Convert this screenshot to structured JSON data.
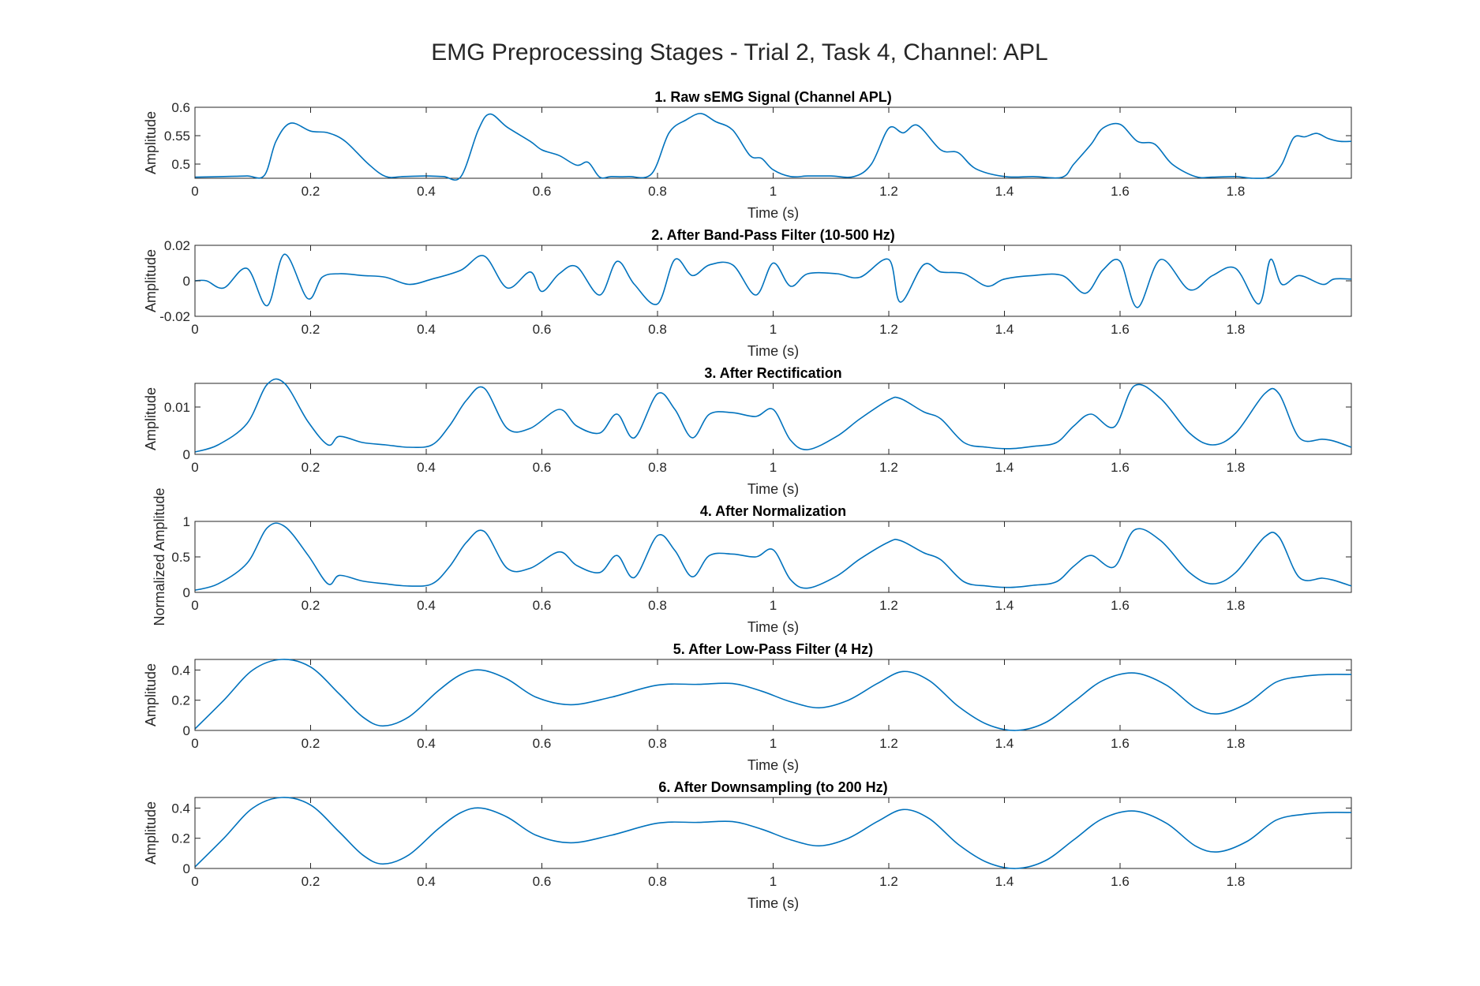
{
  "figure_title": "EMG Preprocessing Stages - Trial 2, Task 4, Channel: APL",
  "line_color": "#0072BD",
  "chart_data": [
    {
      "type": "line",
      "title": "1. Raw sEMG Signal (Channel APL)",
      "xlabel": "Time (s)",
      "ylabel": "Amplitude",
      "xlim": [
        0,
        2
      ],
      "ylim": [
        0.475,
        0.6
      ],
      "xticks": [
        "0",
        "0.2",
        "0.4",
        "0.6",
        "0.8",
        "1",
        "1.2",
        "1.4",
        "1.6",
        "1.8"
      ],
      "yticks": [
        {
          "v": 0.5,
          "label": "0.5"
        },
        {
          "v": 0.55,
          "label": "0.55"
        },
        {
          "v": 0.6,
          "label": "0.6"
        }
      ],
      "x": [
        0,
        0.05,
        0.09,
        0.12,
        0.14,
        0.165,
        0.2,
        0.23,
        0.26,
        0.3,
        0.33,
        0.36,
        0.4,
        0.43,
        0.46,
        0.49,
        0.51,
        0.54,
        0.58,
        0.6,
        0.63,
        0.66,
        0.68,
        0.7,
        0.72,
        0.75,
        0.79,
        0.82,
        0.85,
        0.875,
        0.9,
        0.93,
        0.96,
        0.98,
        1.0,
        1.03,
        1.06,
        1.1,
        1.14,
        1.17,
        1.2,
        1.225,
        1.25,
        1.29,
        1.32,
        1.35,
        1.4,
        1.45,
        1.5,
        1.52,
        1.55,
        1.57,
        1.6,
        1.63,
        1.66,
        1.69,
        1.73,
        1.76,
        1.8,
        1.83,
        1.86,
        1.88,
        1.9,
        1.92,
        1.94,
        1.96,
        1.98,
        2.0
      ],
      "y": [
        0.477,
        0.478,
        0.479,
        0.48,
        0.54,
        0.572,
        0.558,
        0.555,
        0.54,
        0.5,
        0.478,
        0.478,
        0.479,
        0.478,
        0.478,
        0.56,
        0.588,
        0.565,
        0.54,
        0.525,
        0.515,
        0.498,
        0.503,
        0.477,
        0.478,
        0.478,
        0.483,
        0.555,
        0.578,
        0.589,
        0.575,
        0.56,
        0.515,
        0.51,
        0.49,
        0.478,
        0.479,
        0.479,
        0.478,
        0.5,
        0.563,
        0.555,
        0.568,
        0.525,
        0.52,
        0.492,
        0.478,
        0.478,
        0.477,
        0.5,
        0.535,
        0.563,
        0.57,
        0.54,
        0.535,
        0.5,
        0.478,
        0.477,
        0.478,
        0.475,
        0.478,
        0.5,
        0.546,
        0.548,
        0.554,
        0.545,
        0.54,
        0.54
      ]
    },
    {
      "type": "line",
      "title": "2. After Band-Pass Filter (10-500 Hz)",
      "xlabel": "Time (s)",
      "ylabel": "Amplitude",
      "xlim": [
        0,
        2
      ],
      "ylim": [
        -0.02,
        0.02
      ],
      "xticks": [
        "0",
        "0.2",
        "0.4",
        "0.6",
        "0.8",
        "1",
        "1.2",
        "1.4",
        "1.6",
        "1.8"
      ],
      "yticks": [
        {
          "v": -0.02,
          "label": "-0.02"
        },
        {
          "v": 0,
          "label": "0"
        },
        {
          "v": 0.02,
          "label": "0.02"
        }
      ],
      "x": [
        0,
        0.02,
        0.05,
        0.09,
        0.125,
        0.155,
        0.195,
        0.22,
        0.25,
        0.29,
        0.33,
        0.37,
        0.41,
        0.46,
        0.5,
        0.54,
        0.58,
        0.6,
        0.63,
        0.66,
        0.7,
        0.73,
        0.76,
        0.8,
        0.83,
        0.86,
        0.89,
        0.93,
        0.97,
        1.0,
        1.03,
        1.06,
        1.11,
        1.15,
        1.2,
        1.22,
        1.26,
        1.29,
        1.33,
        1.37,
        1.4,
        1.45,
        1.5,
        1.54,
        1.57,
        1.6,
        1.63,
        1.67,
        1.72,
        1.76,
        1.8,
        1.84,
        1.86,
        1.88,
        1.91,
        1.95,
        1.97,
        2.0
      ],
      "y": [
        0,
        0,
        -0.004,
        0.007,
        -0.014,
        0.015,
        -0.01,
        0.002,
        0.004,
        0.003,
        0.002,
        -0.002,
        0.001,
        0.006,
        0.014,
        -0.004,
        0.005,
        -0.006,
        0.004,
        0.008,
        -0.008,
        0.011,
        -0.002,
        -0.013,
        0.012,
        0.003,
        0.009,
        0.009,
        -0.008,
        0.01,
        -0.003,
        0.004,
        0.004,
        0.002,
        0.012,
        -0.012,
        0.009,
        0.005,
        0.004,
        -0.003,
        0.001,
        0.003,
        0.003,
        -0.007,
        0.006,
        0.011,
        -0.015,
        0.012,
        -0.005,
        0.003,
        0.007,
        -0.013,
        0.012,
        -0.002,
        0.003,
        -0.002,
        0.001,
        0.001
      ]
    },
    {
      "type": "line",
      "title": "3. After Rectification",
      "xlabel": "Time (s)",
      "ylabel": "Amplitude",
      "xlim": [
        0,
        2
      ],
      "ylim": [
        0,
        0.015
      ],
      "xticks": [
        "0",
        "0.2",
        "0.4",
        "0.6",
        "0.8",
        "1",
        "1.2",
        "1.4",
        "1.6",
        "1.8"
      ],
      "yticks": [
        {
          "v": 0,
          "label": "0"
        },
        {
          "v": 0.01,
          "label": "0.01"
        }
      ],
      "x": [
        0,
        0.04,
        0.09,
        0.125,
        0.155,
        0.195,
        0.23,
        0.25,
        0.29,
        0.33,
        0.37,
        0.41,
        0.44,
        0.47,
        0.5,
        0.54,
        0.58,
        0.63,
        0.66,
        0.7,
        0.73,
        0.76,
        0.8,
        0.83,
        0.86,
        0.89,
        0.93,
        0.97,
        1.0,
        1.03,
        1.06,
        1.11,
        1.15,
        1.2,
        1.22,
        1.26,
        1.29,
        1.33,
        1.37,
        1.41,
        1.45,
        1.49,
        1.52,
        1.55,
        1.59,
        1.625,
        1.67,
        1.72,
        1.76,
        1.8,
        1.85,
        1.875,
        1.91,
        1.95,
        1.97,
        2.0
      ],
      "y": [
        0.0005,
        0.002,
        0.0065,
        0.0148,
        0.015,
        0.007,
        0.002,
        0.0038,
        0.0025,
        0.002,
        0.0015,
        0.002,
        0.006,
        0.0115,
        0.014,
        0.0055,
        0.0055,
        0.0095,
        0.006,
        0.0045,
        0.0085,
        0.0035,
        0.0128,
        0.0095,
        0.0035,
        0.0085,
        0.0088,
        0.008,
        0.0095,
        0.003,
        0.001,
        0.0038,
        0.0075,
        0.0115,
        0.0118,
        0.009,
        0.0075,
        0.0025,
        0.0015,
        0.0012,
        0.0017,
        0.0025,
        0.006,
        0.0085,
        0.0058,
        0.0145,
        0.0118,
        0.0045,
        0.002,
        0.0045,
        0.0128,
        0.0128,
        0.0035,
        0.0032,
        0.0028,
        0.0015
      ]
    },
    {
      "type": "line",
      "title": "4. After Normalization",
      "xlabel": "Time (s)",
      "ylabel": "Normalized Amplitude",
      "xlim": [
        0,
        2
      ],
      "ylim": [
        0,
        1
      ],
      "xticks": [
        "0",
        "0.2",
        "0.4",
        "0.6",
        "0.8",
        "1",
        "1.2",
        "1.4",
        "1.6",
        "1.8"
      ],
      "yticks": [
        {
          "v": 0,
          "label": "0"
        },
        {
          "v": 0.5,
          "label": "0.5"
        },
        {
          "v": 1,
          "label": "1"
        }
      ],
      "x": [
        0,
        0.04,
        0.09,
        0.125,
        0.155,
        0.195,
        0.23,
        0.25,
        0.29,
        0.33,
        0.37,
        0.41,
        0.44,
        0.47,
        0.5,
        0.54,
        0.58,
        0.63,
        0.66,
        0.7,
        0.73,
        0.76,
        0.8,
        0.83,
        0.86,
        0.89,
        0.93,
        0.97,
        1.0,
        1.03,
        1.06,
        1.11,
        1.15,
        1.2,
        1.22,
        1.26,
        1.29,
        1.33,
        1.37,
        1.41,
        1.45,
        1.49,
        1.52,
        1.55,
        1.59,
        1.625,
        1.67,
        1.72,
        1.76,
        1.8,
        1.85,
        1.875,
        1.91,
        1.95,
        1.97,
        2.0
      ],
      "y": [
        0.03,
        0.12,
        0.41,
        0.91,
        0.93,
        0.53,
        0.12,
        0.24,
        0.16,
        0.12,
        0.09,
        0.12,
        0.36,
        0.71,
        0.86,
        0.34,
        0.34,
        0.57,
        0.38,
        0.28,
        0.52,
        0.21,
        0.8,
        0.59,
        0.22,
        0.52,
        0.54,
        0.5,
        0.6,
        0.18,
        0.06,
        0.23,
        0.47,
        0.71,
        0.73,
        0.56,
        0.46,
        0.15,
        0.09,
        0.07,
        0.1,
        0.15,
        0.37,
        0.52,
        0.36,
        0.88,
        0.73,
        0.28,
        0.12,
        0.28,
        0.78,
        0.78,
        0.21,
        0.2,
        0.17,
        0.09
      ]
    },
    {
      "type": "line",
      "title": "5. After Low-Pass Filter (4 Hz)",
      "xlabel": "Time (s)",
      "ylabel": "Amplitude",
      "xlim": [
        0,
        2
      ],
      "ylim": [
        0,
        0.47
      ],
      "xticks": [
        "0",
        "0.2",
        "0.4",
        "0.6",
        "0.8",
        "1",
        "1.2",
        "1.4",
        "1.6",
        "1.8"
      ],
      "yticks": [
        {
          "v": 0,
          "label": "0"
        },
        {
          "v": 0.2,
          "label": "0.2"
        },
        {
          "v": 0.4,
          "label": "0.4"
        }
      ],
      "x": [
        0,
        0.05,
        0.1,
        0.15,
        0.2,
        0.25,
        0.29,
        0.325,
        0.37,
        0.42,
        0.46,
        0.495,
        0.54,
        0.59,
        0.65,
        0.72,
        0.8,
        0.87,
        0.93,
        0.98,
        1.03,
        1.08,
        1.13,
        1.18,
        1.225,
        1.27,
        1.32,
        1.37,
        1.42,
        1.47,
        1.52,
        1.57,
        1.625,
        1.68,
        1.73,
        1.77,
        1.82,
        1.87,
        1.92,
        1.96,
        2.0
      ],
      "y": [
        0.01,
        0.2,
        0.4,
        0.47,
        0.42,
        0.24,
        0.09,
        0.03,
        0.09,
        0.26,
        0.37,
        0.4,
        0.34,
        0.22,
        0.17,
        0.22,
        0.3,
        0.305,
        0.31,
        0.26,
        0.19,
        0.15,
        0.2,
        0.31,
        0.39,
        0.33,
        0.16,
        0.04,
        0.0,
        0.05,
        0.19,
        0.33,
        0.38,
        0.3,
        0.15,
        0.11,
        0.18,
        0.32,
        0.36,
        0.37,
        0.37
      ]
    },
    {
      "type": "line",
      "title": "6. After Downsampling (to 200 Hz)",
      "xlabel": "Time (s)",
      "ylabel": "Amplitude",
      "xlim": [
        0,
        2
      ],
      "ylim": [
        0,
        0.47
      ],
      "xticks": [
        "0",
        "0.2",
        "0.4",
        "0.6",
        "0.8",
        "1",
        "1.2",
        "1.4",
        "1.6",
        "1.8"
      ],
      "yticks": [
        {
          "v": 0,
          "label": "0"
        },
        {
          "v": 0.2,
          "label": "0.2"
        },
        {
          "v": 0.4,
          "label": "0.4"
        }
      ],
      "x": [
        0,
        0.05,
        0.1,
        0.15,
        0.2,
        0.25,
        0.29,
        0.325,
        0.37,
        0.42,
        0.46,
        0.495,
        0.54,
        0.59,
        0.65,
        0.72,
        0.8,
        0.87,
        0.93,
        0.98,
        1.03,
        1.08,
        1.13,
        1.18,
        1.225,
        1.27,
        1.32,
        1.37,
        1.42,
        1.47,
        1.52,
        1.57,
        1.625,
        1.68,
        1.73,
        1.77,
        1.82,
        1.87,
        1.92,
        1.96,
        2.0
      ],
      "y": [
        0.01,
        0.2,
        0.4,
        0.47,
        0.42,
        0.24,
        0.09,
        0.03,
        0.09,
        0.26,
        0.37,
        0.4,
        0.34,
        0.22,
        0.17,
        0.22,
        0.3,
        0.305,
        0.31,
        0.26,
        0.19,
        0.15,
        0.2,
        0.31,
        0.39,
        0.33,
        0.16,
        0.04,
        0.0,
        0.05,
        0.19,
        0.33,
        0.38,
        0.3,
        0.15,
        0.11,
        0.18,
        0.32,
        0.36,
        0.37,
        0.37
      ]
    }
  ]
}
